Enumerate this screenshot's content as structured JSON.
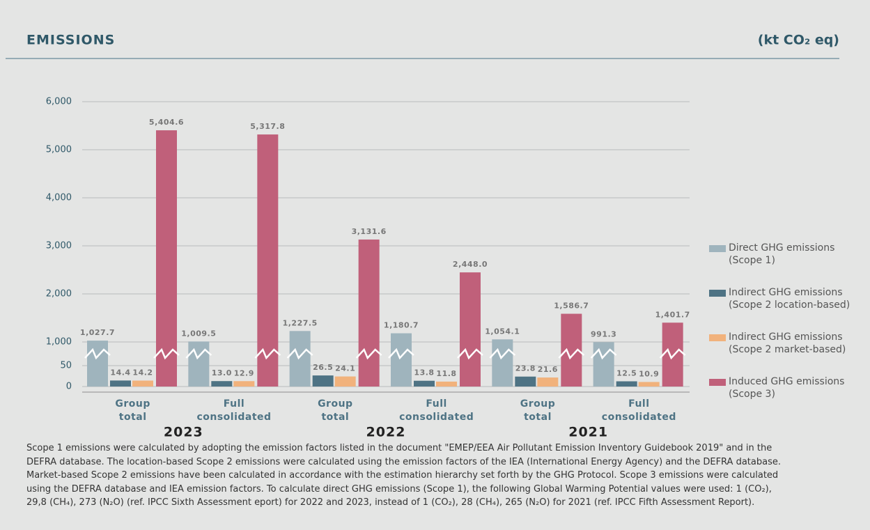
{
  "header": {
    "title": "EMISSIONS",
    "unit": "(kt CO₂ eq)"
  },
  "chart_data": {
    "type": "bar",
    "categories": [
      "Group total",
      "Full consolidated",
      "Group total",
      "Full consolidated",
      "Group total",
      "Full consolidated"
    ],
    "years": [
      "2023",
      "2022",
      "2021"
    ],
    "series": [
      {
        "name": "Direct GHG emissions (Scope 1)",
        "color": "#9fb4bd",
        "values": [
          1027.7,
          1009.5,
          1227.5,
          1180.7,
          1054.1,
          991.3
        ],
        "value_labels": [
          "1,027.7",
          "1,009.5",
          "1,227.5",
          "1,180.7",
          "1,054.1",
          "991.3"
        ]
      },
      {
        "name": "Indirect GHG emissions (Scope 2 location-based)",
        "color": "#4e7384",
        "values": [
          14.4,
          13.0,
          26.5,
          13.8,
          23.8,
          12.5
        ],
        "value_labels": [
          "14.4",
          "13.0",
          "26.5",
          "13.8",
          "23.8",
          "12.5"
        ]
      },
      {
        "name": "Indirect GHG emissions (Scope 2 market-based)",
        "color": "#f1b27c",
        "values": [
          14.2,
          12.9,
          24.1,
          11.8,
          21.6,
          10.9
        ],
        "value_labels": [
          "14.2",
          "12.9",
          "24.1",
          "11.8",
          "21.6",
          "10.9"
        ]
      },
      {
        "name": "Induced GHG emissions (Scope 3)",
        "color": "#c0607a",
        "values": [
          5404.6,
          5317.8,
          3131.6,
          2448.0,
          1586.7,
          1401.7
        ],
        "value_labels": [
          "5,404.6",
          "5,317.8",
          "3,131.6",
          "2,448.0",
          "1,586.7",
          "1,401.7"
        ]
      }
    ],
    "ylim": [
      0,
      6000
    ],
    "y_break": [
      50,
      1000
    ],
    "yticks": [
      0,
      50,
      {
        "value": 1000,
        "label": "1,000"
      },
      {
        "value": 2000,
        "label": "2,000"
      },
      {
        "value": 3000,
        "label": "3,000"
      },
      {
        "value": 4000,
        "label": "4,000"
      },
      {
        "value": 5000,
        "label": "5,000"
      },
      {
        "value": 6000,
        "label": "6,000"
      }
    ],
    "grid": true,
    "legend": "right"
  },
  "note": {
    "lines": [
      "Scope 1 emissions were calculated by adopting the emission factors listed in the document \"EMEP/EEA Air Pollutant Emission Inventory Guidebook 2019\" and in the",
      "DEFRA database. The location-based Scope 2 emissions were calculated using the emission factors of the IEA (International Energy Agency) and the DEFRA database.",
      "Market-based Scope 2 emissions have been calculated in accordance with the estimation hierarchy set forth by the GHG Protocol. Scope 3 emissions were calculated",
      "using the DEFRA database and IEA emission factors. To calculate direct GHG emissions (Scope 1), the following Global Warming Potential values were used: 1 (CO₂),",
      "29,8 (CH₄), 273 (N₂O) (ref. IPCC Sixth Assessment eport) for 2022 and 2023, instead of 1 (CO₂), 28 (CH₄), 265 (N₂O) for 2021 (ref. IPCC Fifth Assessment Report)."
    ]
  }
}
